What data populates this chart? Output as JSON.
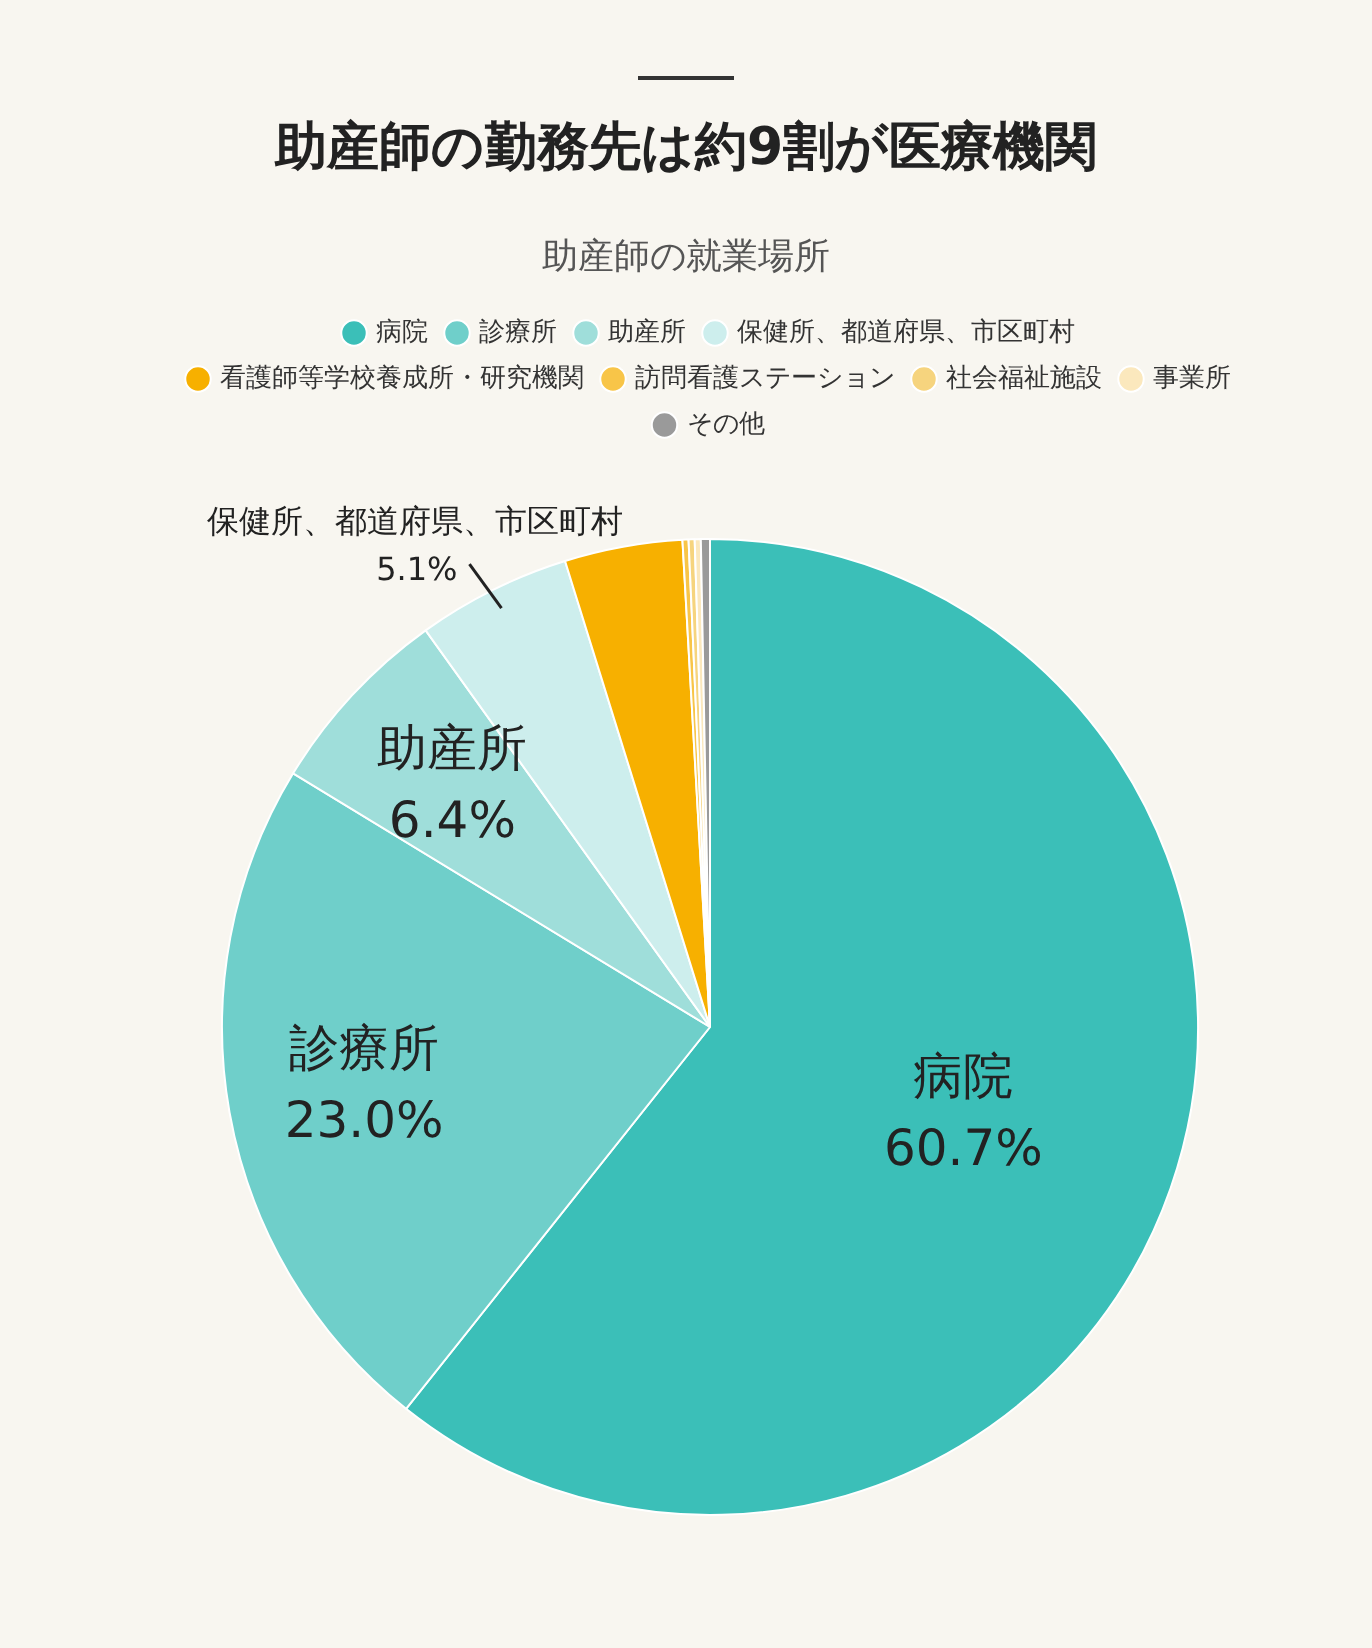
{
  "chart_data": {
    "type": "pie",
    "title": "助産師の勤務先は約9割が医療機関",
    "subtitle": "助産師の就業場所",
    "categories": [
      "病院",
      "診療所",
      "助産所",
      "保健所、都道府県、市区町村",
      "看護師等学校養成所・研究機関",
      "訪問看護ステーション",
      "社会福祉施設",
      "事業所",
      "その他"
    ],
    "values": [
      60.7,
      23.0,
      6.4,
      5.1,
      3.9,
      0.2,
      0.2,
      0.2,
      0.3
    ],
    "colors": [
      "#3bbfb8",
      "#6fcfca",
      "#9fdeda",
      "#cdeeed",
      "#f7b000",
      "#f8c548",
      "#f6d47e",
      "#fbe8bd",
      "#9a9a9a"
    ],
    "value_labels": [
      "60.7%",
      "23.0%",
      "6.4%",
      "5.1%",
      null,
      null,
      null,
      null,
      null
    ],
    "legend": "top"
  }
}
